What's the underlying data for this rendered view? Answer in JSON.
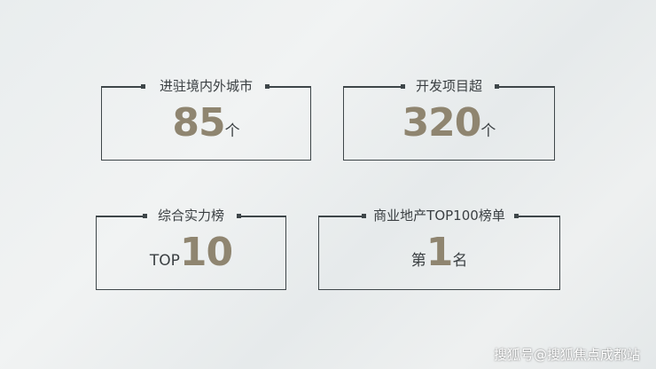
{
  "stats": [
    {
      "title": "进驻境内外城市",
      "prefix": "",
      "value": "85",
      "suffix": "个"
    },
    {
      "title": "开发项目超",
      "prefix": "",
      "value": "320",
      "suffix": "个"
    },
    {
      "title": "综合实力榜",
      "prefix": "TOP",
      "value": "10",
      "suffix": ""
    },
    {
      "title": "商业地产TOP100榜单",
      "prefix": "第",
      "value": "1",
      "suffix": "名"
    }
  ],
  "watermark": "搜狐号@搜狐焦点成都站",
  "colors": {
    "value": "#8f8570",
    "border": "#3e4649"
  }
}
